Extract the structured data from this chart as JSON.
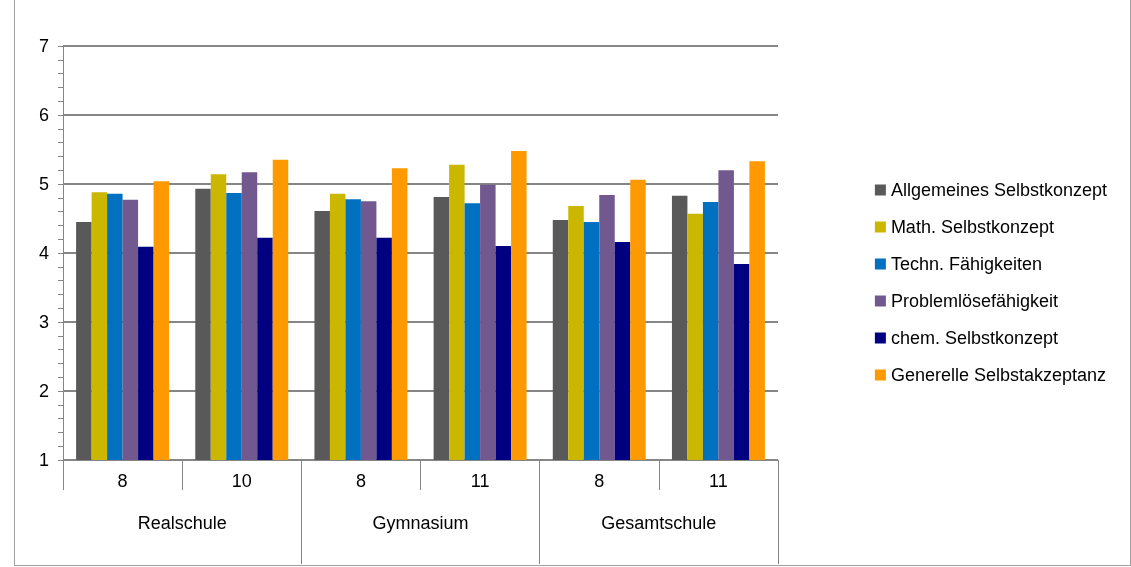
{
  "chart_data": {
    "type": "bar",
    "categories": [
      "8",
      "10",
      "8",
      "11",
      "8",
      "11"
    ],
    "annotations": [
      "Realschule",
      "Gymnasium",
      "Gesamtschule"
    ],
    "series": [
      {
        "name": "Allgemeines Selbstkonzept",
        "color": "#595959",
        "values": [
          4.45,
          4.93,
          4.61,
          4.81,
          4.48,
          4.83
        ]
      },
      {
        "name": "Math. Selbstkonzept",
        "color": "#cbb700",
        "values": [
          4.88,
          5.14,
          4.86,
          5.28,
          4.68,
          4.57
        ]
      },
      {
        "name": "Techn. Fähigkeiten",
        "color": "#0070c0",
        "values": [
          4.86,
          4.87,
          4.78,
          4.72,
          4.45,
          4.74
        ]
      },
      {
        "name": "Problemlösefähigkeit",
        "color": "#71588f",
        "values": [
          4.77,
          5.17,
          4.75,
          4.99,
          4.84,
          5.2
        ]
      },
      {
        "name": "chem. Selbstkonzept",
        "color": "#000080",
        "values": [
          4.09,
          4.22,
          4.22,
          4.1,
          4.16,
          3.84
        ]
      },
      {
        "name": "Generelle Selbstakzeptanz",
        "color": "#ff9900",
        "values": [
          5.04,
          5.35,
          5.23,
          5.48,
          5.06,
          5.33
        ]
      }
    ],
    "ylim": [
      1,
      7
    ],
    "yticks": [
      1,
      {
        "value": 1.2,
        "label": null
      },
      {
        "value": 1.4,
        "label": null
      },
      {
        "value": 1.6,
        "label": null
      },
      {
        "value": 1.8,
        "label": null
      },
      2,
      {
        "value": 2.2,
        "label": null
      },
      {
        "value": 2.4,
        "label": null
      },
      {
        "value": 2.6,
        "label": null
      },
      {
        "value": 2.8,
        "label": null
      },
      3,
      {
        "value": 3.2,
        "label": null
      },
      {
        "value": 3.4,
        "label": null
      },
      {
        "value": 3.6,
        "label": null
      },
      {
        "value": 3.8,
        "label": null
      },
      4,
      {
        "value": 4.2,
        "label": null
      },
      {
        "value": 4.4,
        "label": null
      },
      {
        "value": 4.6,
        "label": null
      },
      {
        "value": 4.8,
        "label": null
      },
      5,
      {
        "value": 5.2,
        "label": null
      },
      {
        "value": 5.4,
        "label": null
      },
      {
        "value": 5.6,
        "label": null
      },
      {
        "value": 5.8,
        "label": null
      },
      6,
      {
        "value": 6.2,
        "label": null
      },
      {
        "value": 6.4,
        "label": null
      },
      {
        "value": 6.6,
        "label": null
      },
      {
        "value": 6.8,
        "label": null
      },
      7
    ],
    "grid": "y",
    "legend": "right"
  }
}
